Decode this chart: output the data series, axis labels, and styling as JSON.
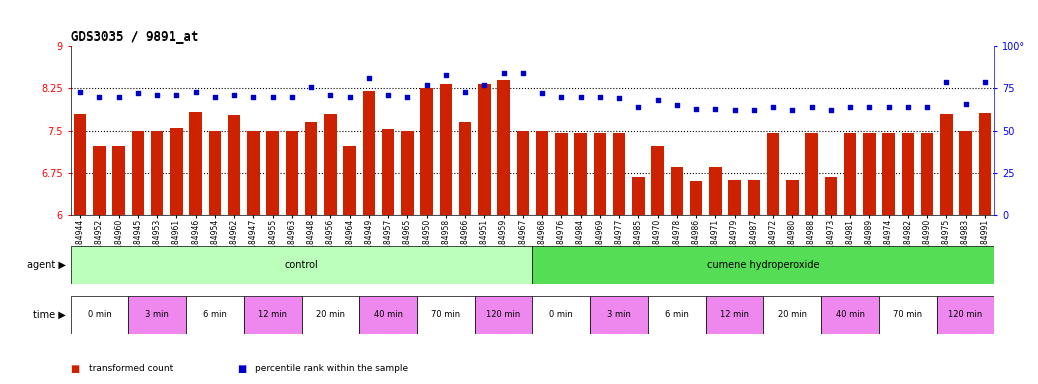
{
  "title": "GDS3035 / 9891_at",
  "bar_color": "#cc2200",
  "dot_color": "#0000cc",
  "ylim_left": [
    6,
    9
  ],
  "ylim_right": [
    0,
    100
  ],
  "yticks_left": [
    6,
    6.75,
    7.5,
    8.25,
    9
  ],
  "yticks_right": [
    0,
    25,
    50,
    75,
    100
  ],
  "hlines": [
    6.75,
    7.5,
    8.25
  ],
  "samples": [
    "GSM184944",
    "GSM184952",
    "GSM184960",
    "GSM184945",
    "GSM184953",
    "GSM184961",
    "GSM184946",
    "GSM184954",
    "GSM184962",
    "GSM184947",
    "GSM184955",
    "GSM184963",
    "GSM184948",
    "GSM184956",
    "GSM184964",
    "GSM184949",
    "GSM184957",
    "GSM184965",
    "GSM184950",
    "GSM184958",
    "GSM184966",
    "GSM184951",
    "GSM184959",
    "GSM184967",
    "GSM184968",
    "GSM184976",
    "GSM184984",
    "GSM184969",
    "GSM184977",
    "GSM184985",
    "GSM184970",
    "GSM184978",
    "GSM184986",
    "GSM184971",
    "GSM184979",
    "GSM184987",
    "GSM184972",
    "GSM184980",
    "GSM184988",
    "GSM184973",
    "GSM184981",
    "GSM184989",
    "GSM184974",
    "GSM184982",
    "GSM184990",
    "GSM184975",
    "GSM184983",
    "GSM184991"
  ],
  "bar_values": [
    7.8,
    7.22,
    7.22,
    7.5,
    7.5,
    7.55,
    7.83,
    7.5,
    7.78,
    7.5,
    7.5,
    7.5,
    7.65,
    7.8,
    7.22,
    8.2,
    7.52,
    7.5,
    8.25,
    8.32,
    7.65,
    8.32,
    8.4,
    7.5,
    7.5,
    7.45,
    7.45,
    7.45,
    7.45,
    6.68,
    7.22,
    6.85,
    6.6,
    6.85,
    6.62,
    6.62,
    7.45,
    6.62,
    7.45,
    6.68,
    7.45,
    7.45,
    7.45,
    7.45,
    7.45,
    7.8,
    7.5,
    7.82
  ],
  "dot_values": [
    73,
    70,
    70,
    72,
    71,
    71,
    73,
    70,
    71,
    70,
    70,
    70,
    76,
    71,
    70,
    81,
    71,
    70,
    77,
    83,
    73,
    77,
    84,
    84,
    72,
    70,
    70,
    70,
    69,
    64,
    68,
    65,
    63,
    63,
    62,
    62,
    64,
    62,
    64,
    62,
    64,
    64,
    64,
    64,
    64,
    79,
    66,
    79
  ],
  "agent_groups": [
    {
      "label": "control",
      "start": 0,
      "end": 24,
      "color": "#bbffbb"
    },
    {
      "label": "cumene hydroperoxide",
      "start": 24,
      "end": 48,
      "color": "#55dd55"
    }
  ],
  "time_groups": [
    {
      "label": "0 min",
      "start": 0,
      "end": 3,
      "color": "#ffffff"
    },
    {
      "label": "3 min",
      "start": 3,
      "end": 6,
      "color": "#ee88ee"
    },
    {
      "label": "6 min",
      "start": 6,
      "end": 9,
      "color": "#ffffff"
    },
    {
      "label": "12 min",
      "start": 9,
      "end": 12,
      "color": "#ee88ee"
    },
    {
      "label": "20 min",
      "start": 12,
      "end": 15,
      "color": "#ffffff"
    },
    {
      "label": "40 min",
      "start": 15,
      "end": 18,
      "color": "#ee88ee"
    },
    {
      "label": "70 min",
      "start": 18,
      "end": 21,
      "color": "#ffffff"
    },
    {
      "label": "120 min",
      "start": 21,
      "end": 24,
      "color": "#ee88ee"
    },
    {
      "label": "0 min",
      "start": 24,
      "end": 27,
      "color": "#ffffff"
    },
    {
      "label": "3 min",
      "start": 27,
      "end": 30,
      "color": "#ee88ee"
    },
    {
      "label": "6 min",
      "start": 30,
      "end": 33,
      "color": "#ffffff"
    },
    {
      "label": "12 min",
      "start": 33,
      "end": 36,
      "color": "#ee88ee"
    },
    {
      "label": "20 min",
      "start": 36,
      "end": 39,
      "color": "#ffffff"
    },
    {
      "label": "40 min",
      "start": 39,
      "end": 42,
      "color": "#ee88ee"
    },
    {
      "label": "70 min",
      "start": 42,
      "end": 45,
      "color": "#ffffff"
    },
    {
      "label": "120 min",
      "start": 45,
      "end": 48,
      "color": "#ee88ee"
    }
  ],
  "legend_items": [
    {
      "label": "transformed count",
      "color": "#cc2200"
    },
    {
      "label": "percentile rank within the sample",
      "color": "#0000cc"
    }
  ],
  "background_color": "#ffffff",
  "title_fontsize": 9,
  "tick_fontsize": 5.5,
  "row_fontsize": 7
}
